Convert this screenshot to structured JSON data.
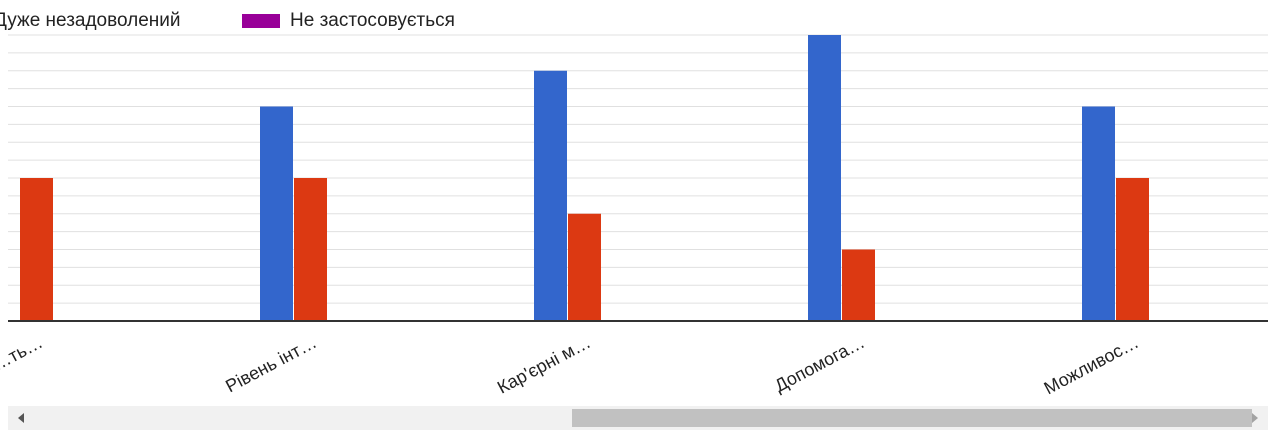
{
  "chart_data": {
    "type": "bar",
    "categories": [
      "…ть…",
      "Рівень інт…",
      "Кар'єрні м…",
      "Допомога…",
      "Можливос…"
    ],
    "series": [
      {
        "name": "",
        "color": "#3366cc",
        "values": [
          null,
          6,
          7,
          8,
          6
        ]
      },
      {
        "name": "",
        "color": "#dc3912",
        "values": [
          4,
          4,
          3,
          2,
          4
        ]
      },
      {
        "name": "Дуже незадоволений",
        "color": "#ff9900",
        "values": [
          0,
          0,
          0,
          0,
          0
        ]
      },
      {
        "name": "Не застосовується",
        "color": "#990099",
        "values": [
          0,
          0,
          0,
          0,
          0
        ]
      }
    ],
    "ylim": [
      0,
      8
    ],
    "grid": true,
    "title": "",
    "xlabel": "",
    "ylabel": ""
  },
  "legend": {
    "items": [
      {
        "label": "Дуже незадоволений",
        "color": "#ff9900"
      },
      {
        "label": "Не застосовується",
        "color": "#990099"
      }
    ]
  }
}
